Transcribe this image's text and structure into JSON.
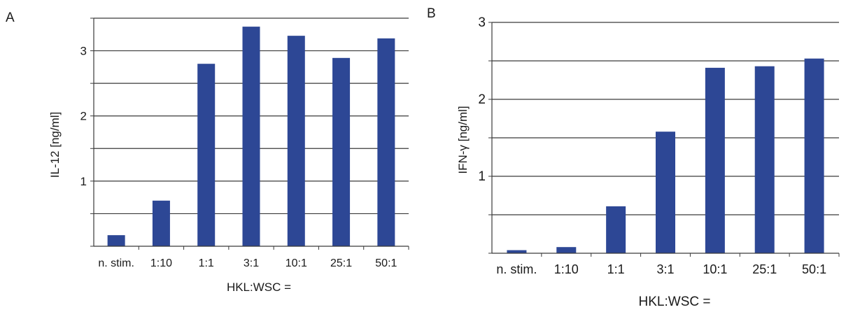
{
  "chart_data": [
    {
      "panel_label": "A",
      "type": "bar",
      "categories": [
        "n. stim.",
        "1:10",
        "1:1",
        "3:1",
        "10:1",
        "25:1",
        "50:1"
      ],
      "values": [
        0.17,
        0.7,
        2.8,
        3.37,
        3.23,
        2.89,
        3.19
      ],
      "ylabel": "IL-12 [ng/ml]",
      "xlabel": "HKL:WSC =",
      "ylim": [
        0,
        3.5
      ],
      "yticks": [
        1,
        2,
        3
      ],
      "ytick_labels": [
        "1",
        "2",
        "3"
      ],
      "grid_step": 0.5,
      "grid": true,
      "bar_color": "#2d4795"
    },
    {
      "panel_label": "B",
      "type": "bar",
      "categories": [
        "n. stim.",
        "1:10",
        "1:1",
        "3:1",
        "10:1",
        "25:1",
        "50:1"
      ],
      "values": [
        0.04,
        0.08,
        0.61,
        1.58,
        2.41,
        2.43,
        2.53
      ],
      "ylabel": "IFN-γ [ng/ml]",
      "xlabel": "HKL:WSC =",
      "ylim": [
        0,
        3
      ],
      "yticks": [
        1,
        2,
        3
      ],
      "ytick_labels": [
        "1",
        "2",
        "3"
      ],
      "grid_step": 0.5,
      "grid": true,
      "bar_color": "#2d4795"
    }
  ]
}
